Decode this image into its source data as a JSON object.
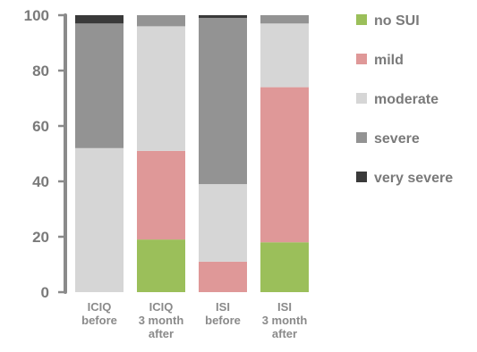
{
  "chart_data": {
    "type": "bar",
    "stacked": true,
    "categories": [
      [
        "ICIQ",
        "before"
      ],
      [
        "ICIQ",
        "3 month",
        "after"
      ],
      [
        "ISI",
        "before"
      ],
      [
        "ISI",
        "3 month",
        "after"
      ]
    ],
    "series": [
      {
        "name": "no SUI",
        "color": "#9bbf5a",
        "values": [
          0,
          19,
          0,
          18
        ]
      },
      {
        "name": "mild",
        "color": "#df9898",
        "values": [
          0,
          32,
          11,
          56
        ]
      },
      {
        "name": "moderate",
        "color": "#d6d6d6",
        "values": [
          52,
          45,
          28,
          23
        ]
      },
      {
        "name": "severe",
        "color": "#939393",
        "values": [
          45,
          4,
          60,
          3
        ]
      },
      {
        "name": "very severe",
        "color": "#3a3a3a",
        "values": [
          3,
          0,
          1,
          0
        ]
      }
    ],
    "ylim": [
      0,
      100
    ],
    "yticks": [
      0,
      20,
      40,
      60,
      80,
      100
    ],
    "legend_position": "right",
    "grid": false
  }
}
